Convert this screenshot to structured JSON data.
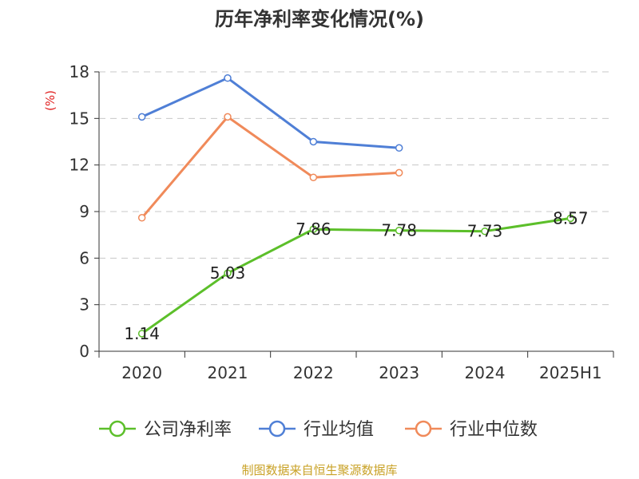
{
  "title": "历年净利率变化情况(%)",
  "source": "制图数据来自恒生聚源数据库",
  "chart_data": {
    "type": "line",
    "title": "历年净利率变化情况(%)",
    "ylabel": "(%)",
    "categories": [
      "2020",
      "2021",
      "2022",
      "2023",
      "2024",
      "2025H1"
    ],
    "ylim": [
      0,
      18
    ],
    "yticks": [
      0,
      3,
      6,
      9,
      12,
      15,
      18
    ],
    "grid": true,
    "legend": "bottom",
    "series": [
      {
        "name": "公司净利率",
        "color": "#5cbf2a",
        "values": [
          1.14,
          5.03,
          7.86,
          7.78,
          7.73,
          8.57
        ],
        "labels": [
          "1.14",
          "5.03",
          "7.86",
          "7.78",
          "7.73",
          "8.57"
        ]
      },
      {
        "name": "行业均值",
        "color": "#4f7fd6",
        "values": [
          15.1,
          17.6,
          13.5,
          13.1,
          null,
          null
        ]
      },
      {
        "name": "行业中位数",
        "color": "#f08a5a",
        "values": [
          8.6,
          15.1,
          11.2,
          11.5,
          null,
          null
        ]
      }
    ]
  }
}
